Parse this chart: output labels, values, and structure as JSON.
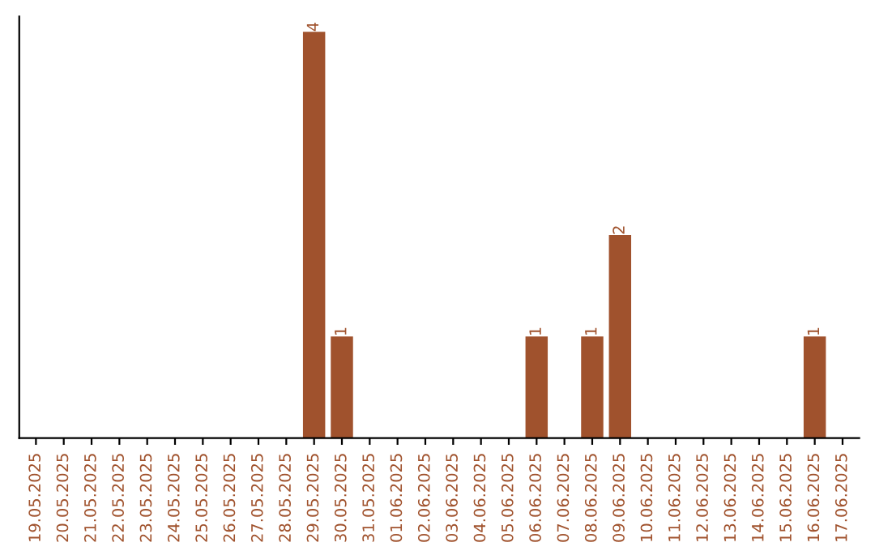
{
  "chart_data": {
    "type": "bar",
    "categories": [
      "19.05.2025",
      "20.05.2025",
      "21.05.2025",
      "22.05.2025",
      "23.05.2025",
      "24.05.2025",
      "25.05.2025",
      "26.05.2025",
      "27.05.2025",
      "28.05.2025",
      "29.05.2025",
      "30.05.2025",
      "31.05.2025",
      "01.06.2025",
      "02.06.2025",
      "03.06.2025",
      "04.06.2025",
      "05.06.2025",
      "06.06.2025",
      "07.06.2025",
      "08.06.2025",
      "09.06.2025",
      "10.06.2025",
      "11.06.2025",
      "12.06.2025",
      "13.06.2025",
      "14.06.2025",
      "15.06.2025",
      "16.06.2025",
      "17.06.2025"
    ],
    "values": [
      0,
      0,
      0,
      0,
      0,
      0,
      0,
      0,
      0,
      0,
      4,
      1,
      0,
      0,
      0,
      0,
      0,
      0,
      1,
      0,
      1,
      2,
      0,
      0,
      0,
      0,
      0,
      0,
      1,
      0
    ],
    "value_labels": [
      null,
      null,
      null,
      null,
      null,
      null,
      null,
      null,
      null,
      null,
      "4",
      "1",
      null,
      null,
      null,
      null,
      null,
      null,
      "1",
      null,
      "1",
      "2",
      null,
      null,
      null,
      null,
      null,
      null,
      "1",
      null
    ],
    "color": "#a0522d",
    "ylim": [
      0,
      4.15
    ],
    "tick_labels": "x"
  }
}
